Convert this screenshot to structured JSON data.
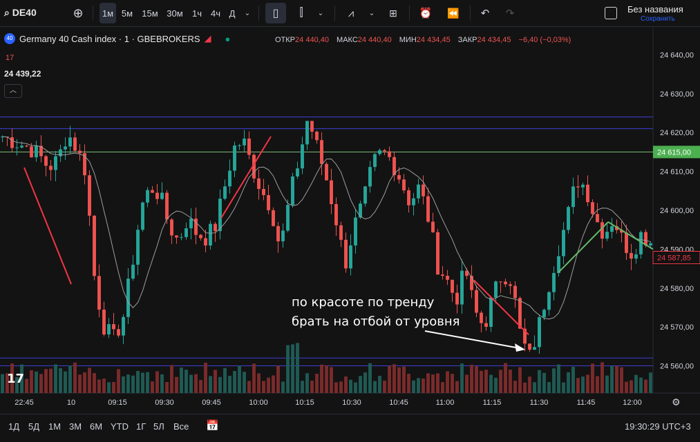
{
  "toolbar": {
    "symbol": "DE40",
    "timeframes": [
      "1м",
      "5м",
      "15м",
      "30м",
      "1ч",
      "4ч",
      "Д"
    ],
    "active_timeframe": "1м",
    "layout_title": "Без названия",
    "save_label": "Сохранить"
  },
  "legend": {
    "badge": "40",
    "instrument": "Germany 40 Cash index · 1 · GBEBROKERS",
    "open_label": "ОТКР",
    "open": "24 440,40",
    "high_label": "МАКС",
    "high": "24 440,40",
    "low_label": "МИН",
    "low": "24 434,45",
    "close_label": "ЗАКР",
    "close": "24 434,45",
    "change": "−6,40 (−0,03%)",
    "indicator_value": "17",
    "price_marker": "24 439,22"
  },
  "chart_data": {
    "type": "candlestick",
    "ylim": [
      24553,
      24647
    ],
    "y_ticks": [
      "24 640,00",
      "24 630,00",
      "24 620,00",
      "24 610,00",
      "24 600,00",
      "24 590,00",
      "24 580,00",
      "24 570,00",
      "24 560,00"
    ],
    "y_tick_values": [
      24640,
      24630,
      24620,
      24610,
      24600,
      24590,
      24580,
      24570,
      24560
    ],
    "x_ticks": [
      "22:45",
      "10",
      "09:15",
      "09:30",
      "09:45",
      "10:00",
      "10:15",
      "10:30",
      "10:45",
      "11:00",
      "11:15",
      "11:30",
      "11:45",
      "12:00"
    ],
    "horizontal_levels": [
      {
        "value": 24624,
        "color": "#3f3fd9"
      },
      {
        "value": 24621,
        "color": "#3f3fd9"
      },
      {
        "value": 24615,
        "color": "#7ec27e",
        "label": "24 615,00"
      },
      {
        "value": 24562,
        "color": "#3f3fd9"
      },
      {
        "value": 24560,
        "color": "#3f3fd9"
      }
    ],
    "current_price_label": "24 587,85",
    "current_price": 24587.85,
    "annotation": [
      "по красоте по тренду",
      "брать на отбой от уровня"
    ],
    "close_path": [
      24619,
      24618,
      24617,
      24616,
      24614,
      24611,
      24613,
      24620,
      24616,
      24610,
      24581,
      24570,
      24567,
      24572,
      24586,
      24601,
      24606,
      24604,
      24596,
      24592,
      24598,
      24594,
      24593,
      24596,
      24606,
      24616,
      24618,
      24611,
      24605,
      24601,
      24590,
      24603,
      24613,
      24624,
      24616,
      24608,
      24598,
      24586,
      24596,
      24602,
      24612,
      24615,
      24613,
      24608,
      24602,
      24606,
      24598,
      24586,
      24582,
      24577,
      24585,
      24574,
      24570,
      24578,
      24584,
      24582,
      24567,
      24562,
      24571,
      24581,
      24590,
      24598,
      24608,
      24606,
      24598,
      24594,
      24598,
      24592,
      24589,
      24594,
      24592
    ]
  },
  "bottombar": {
    "ranges": [
      "1Д",
      "5Д",
      "1М",
      "3М",
      "6М",
      "YTD",
      "1Г",
      "5Л",
      "Все"
    ],
    "time": "19:30:29 UTC+3"
  }
}
